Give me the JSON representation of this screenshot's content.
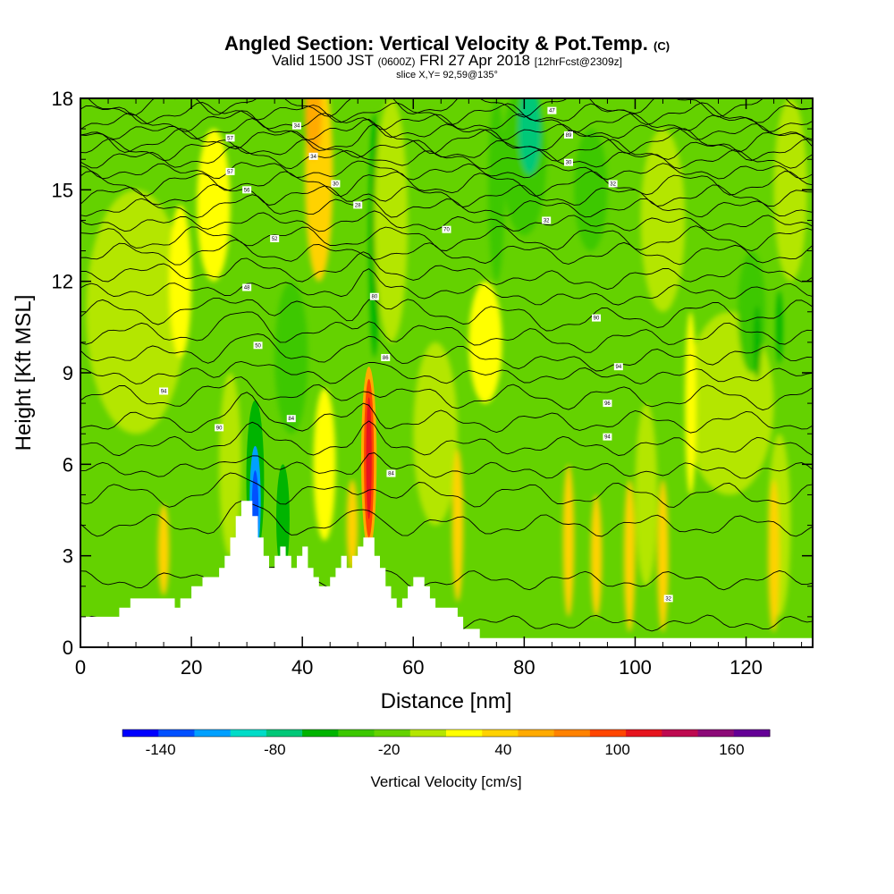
{
  "chart_data": {
    "type": "heatmap",
    "title": "Angled Section: Vertical Velocity & Pot.Temp.",
    "title_unit": "(C)",
    "subtitle_valid": "Valid 1500 JST",
    "subtitle_utc": "(0600Z)",
    "subtitle_date": "FRI 27 Apr 2018",
    "subtitle_run": "[12hrFcst@2309z]",
    "slice_info": "slice X,Y= 92,59@135°",
    "xlabel": "Distance [nm]",
    "ylabel": "Height [Kft MSL]",
    "xlim": [
      0,
      132
    ],
    "ylim": [
      0,
      18
    ],
    "x_ticks": [
      "0",
      "20",
      "40",
      "60",
      "80",
      "100",
      "120"
    ],
    "x_tick_values": [
      0,
      20,
      40,
      60,
      80,
      100,
      120
    ],
    "y_ticks": [
      "0",
      "3",
      "6",
      "9",
      "12",
      "15",
      "18"
    ],
    "y_tick_values": [
      0,
      3,
      6,
      9,
      12,
      15,
      18
    ],
    "colorbar": {
      "title": "Vertical Velocity [cm/s]",
      "labels": [
        "-140",
        "-80",
        "-20",
        "40",
        "100",
        "160"
      ],
      "label_values": [
        -140,
        -80,
        -20,
        40,
        100,
        160
      ],
      "levels": [
        -160,
        -140,
        -120,
        -100,
        -80,
        -60,
        -40,
        -20,
        0,
        20,
        40,
        60,
        80,
        100,
        120,
        140,
        160,
        180
      ],
      "colors": [
        "#0000ff",
        "#0050ff",
        "#00a0ff",
        "#00dcc8",
        "#00c878",
        "#00b400",
        "#3cc800",
        "#64d200",
        "#b4e600",
        "#ffff00",
        "#ffd200",
        "#ffaa00",
        "#ff8200",
        "#ff4600",
        "#e6141e",
        "#be0a50",
        "#8c0a78",
        "#640096"
      ]
    },
    "background_level": "#64d200",
    "field_blobs": [
      {
        "x": 10,
        "y": 11,
        "rx": 9,
        "ry": 4,
        "value": 10
      },
      {
        "x": 18,
        "y": 12,
        "rx": 2,
        "ry": 2.5,
        "value": 30
      },
      {
        "x": 24,
        "y": 14.5,
        "rx": 3,
        "ry": 2.5,
        "value": 30
      },
      {
        "x": 15,
        "y": 3.2,
        "rx": 1,
        "ry": 1.5,
        "value": 40
      },
      {
        "x": 27,
        "y": 6,
        "rx": 2,
        "ry": 3,
        "value": 10
      },
      {
        "x": 43,
        "y": 15.5,
        "rx": 2.5,
        "ry": 3.5,
        "value": 40
      },
      {
        "x": 42,
        "y": 17.5,
        "rx": 1.5,
        "ry": 1.5,
        "value": 60
      },
      {
        "x": 38,
        "y": 9.5,
        "rx": 3,
        "ry": 2.5,
        "value": -30
      },
      {
        "x": 44,
        "y": 6,
        "rx": 2,
        "ry": 2.5,
        "value": 30
      },
      {
        "x": 49,
        "y": 4,
        "rx": 1,
        "ry": 1.5,
        "value": 40
      },
      {
        "x": 53,
        "y": 13.5,
        "rx": 1,
        "ry": 4,
        "value": -50
      },
      {
        "x": 56,
        "y": 14,
        "rx": 3,
        "ry": 4,
        "value": 10
      },
      {
        "x": 64,
        "y": 7,
        "rx": 4,
        "ry": 3,
        "value": 10
      },
      {
        "x": 73,
        "y": 10,
        "rx": 3,
        "ry": 2,
        "value": 30
      },
      {
        "x": 80,
        "y": 16,
        "rx": 4,
        "ry": 2.5,
        "value": -30
      },
      {
        "x": 81,
        "y": 17,
        "rx": 2,
        "ry": 1.5,
        "value": -70
      },
      {
        "x": 92,
        "y": 15,
        "rx": 3,
        "ry": 2,
        "value": -30
      },
      {
        "x": 105,
        "y": 14,
        "rx": 4,
        "ry": 3,
        "value": 10
      },
      {
        "x": 102,
        "y": 5,
        "rx": 2,
        "ry": 3,
        "value": 10
      },
      {
        "x": 117,
        "y": 8,
        "rx": 8,
        "ry": 3,
        "value": 10
      },
      {
        "x": 121,
        "y": 11,
        "rx": 2.5,
        "ry": 2,
        "value": -30
      },
      {
        "x": 122,
        "y": 10,
        "rx": 0.7,
        "ry": 1.2,
        "value": -60
      },
      {
        "x": 126,
        "y": 10.5,
        "rx": 0.6,
        "ry": 1.2,
        "value": -60
      },
      {
        "x": 126,
        "y": 4,
        "rx": 2,
        "ry": 3,
        "value": 10
      },
      {
        "x": 125,
        "y": 3,
        "rx": 1,
        "ry": 2.5,
        "value": 40
      },
      {
        "x": 88,
        "y": 3.5,
        "rx": 1,
        "ry": 2.5,
        "value": 40
      },
      {
        "x": 99,
        "y": 3,
        "rx": 1,
        "ry": 2.5,
        "value": 40
      },
      {
        "x": 105,
        "y": 3,
        "rx": 1,
        "ry": 2.5,
        "value": 40
      },
      {
        "x": 93,
        "y": 3,
        "rx": 1,
        "ry": 2,
        "value": 40
      },
      {
        "x": 68,
        "y": 4,
        "rx": 1,
        "ry": 2.5,
        "value": 40
      },
      {
        "x": 75,
        "y": 15,
        "rx": 1.5,
        "ry": 3,
        "value": -30
      },
      {
        "x": 110,
        "y": 8,
        "rx": 1,
        "ry": 3,
        "value": 30
      },
      {
        "x": 128,
        "y": 15,
        "rx": 3,
        "ry": 3,
        "value": 10
      }
    ],
    "field_plumes": [
      {
        "x": 52,
        "y": 6.2,
        "rx": 1.4,
        "ry": 3,
        "value": 60
      },
      {
        "x": 52,
        "y": 6.2,
        "rx": 0.9,
        "ry": 2.6,
        "value": 100
      },
      {
        "x": 52,
        "y": 6.2,
        "rx": 0.5,
        "ry": 2.0,
        "value": 130
      },
      {
        "x": 31.5,
        "y": 5.5,
        "rx": 1.6,
        "ry": 2.6,
        "value": -60
      },
      {
        "x": 31.5,
        "y": 4.8,
        "rx": 1.0,
        "ry": 1.8,
        "value": -110
      },
      {
        "x": 31.5,
        "y": 4.5,
        "rx": 0.6,
        "ry": 1.3,
        "value": -140
      },
      {
        "x": 36.5,
        "y": 4.2,
        "rx": 1.2,
        "ry": 1.8,
        "value": -60
      }
    ],
    "terrain": {
      "x": [
        0,
        5,
        7,
        9,
        15,
        17,
        18,
        20,
        22,
        25,
        26,
        27,
        28,
        29,
        30,
        31,
        32,
        33,
        34,
        35,
        36,
        37,
        38,
        39,
        40,
        41,
        42,
        43,
        44,
        45,
        46,
        47,
        48,
        49,
        50,
        51,
        52,
        53,
        54,
        55,
        56,
        57,
        58,
        59,
        60,
        61,
        62,
        63,
        64,
        66,
        68,
        69,
        70,
        71,
        72,
        73,
        80,
        90,
        100,
        110,
        120,
        132
      ],
      "y": [
        1.0,
        1.0,
        1.3,
        1.6,
        1.6,
        1.3,
        1.6,
        2.0,
        2.3,
        2.6,
        3.0,
        3.6,
        4.3,
        4.8,
        4.8,
        4.3,
        3.6,
        3.0,
        2.6,
        3.0,
        3.3,
        3.0,
        2.6,
        3.0,
        3.3,
        2.6,
        2.3,
        2.0,
        2.0,
        2.3,
        2.6,
        3.0,
        2.6,
        3.0,
        3.3,
        3.6,
        3.6,
        3.0,
        2.6,
        2.0,
        1.6,
        1.3,
        1.6,
        2.0,
        2.3,
        2.3,
        2.0,
        1.6,
        1.3,
        1.3,
        1.0,
        0.6,
        0.6,
        0.6,
        0.3,
        0.3,
        0.3,
        0.3,
        0.3,
        0.3,
        0.3,
        0.3
      ]
    },
    "theta_contours": {
      "y_base": [
        0.8,
        2.2,
        4.0,
        5.0,
        5.8,
        6.6,
        7.4,
        8.2,
        8.9,
        9.6,
        10.3,
        11.0,
        11.7,
        12.3,
        12.9,
        13.4,
        13.9,
        14.4,
        14.8,
        15.2,
        15.6,
        16.0,
        16.3,
        16.6,
        16.9,
        17.2,
        17.5,
        17.8
      ]
    },
    "contour_labels": [
      {
        "x": 27,
        "y": 16.7,
        "text": "57"
      },
      {
        "x": 27,
        "y": 15.6,
        "text": "57"
      },
      {
        "x": 30,
        "y": 15.0,
        "text": "56"
      },
      {
        "x": 35,
        "y": 13.4,
        "text": "52"
      },
      {
        "x": 30,
        "y": 11.8,
        "text": "48"
      },
      {
        "x": 39,
        "y": 17.1,
        "text": "34"
      },
      {
        "x": 42,
        "y": 16.1,
        "text": "34"
      },
      {
        "x": 46,
        "y": 15.2,
        "text": "30"
      },
      {
        "x": 50,
        "y": 14.5,
        "text": "28"
      },
      {
        "x": 66,
        "y": 13.7,
        "text": "70"
      },
      {
        "x": 53,
        "y": 11.5,
        "text": "80"
      },
      {
        "x": 55,
        "y": 9.5,
        "text": "86"
      },
      {
        "x": 32,
        "y": 9.9,
        "text": "50"
      },
      {
        "x": 15,
        "y": 8.4,
        "text": "94"
      },
      {
        "x": 25,
        "y": 7.2,
        "text": "90"
      },
      {
        "x": 38,
        "y": 7.5,
        "text": "84"
      },
      {
        "x": 56,
        "y": 5.7,
        "text": "84"
      },
      {
        "x": 85,
        "y": 17.6,
        "text": "47"
      },
      {
        "x": 88,
        "y": 16.8,
        "text": "89"
      },
      {
        "x": 88,
        "y": 15.9,
        "text": "30"
      },
      {
        "x": 96,
        "y": 15.2,
        "text": "32"
      },
      {
        "x": 84,
        "y": 14.0,
        "text": "32"
      },
      {
        "x": 93,
        "y": 10.8,
        "text": "90"
      },
      {
        "x": 97,
        "y": 9.2,
        "text": "94"
      },
      {
        "x": 95,
        "y": 8.0,
        "text": "96"
      },
      {
        "x": 95,
        "y": 6.9,
        "text": "94"
      },
      {
        "x": 106,
        "y": 1.6,
        "text": "32"
      }
    ]
  }
}
